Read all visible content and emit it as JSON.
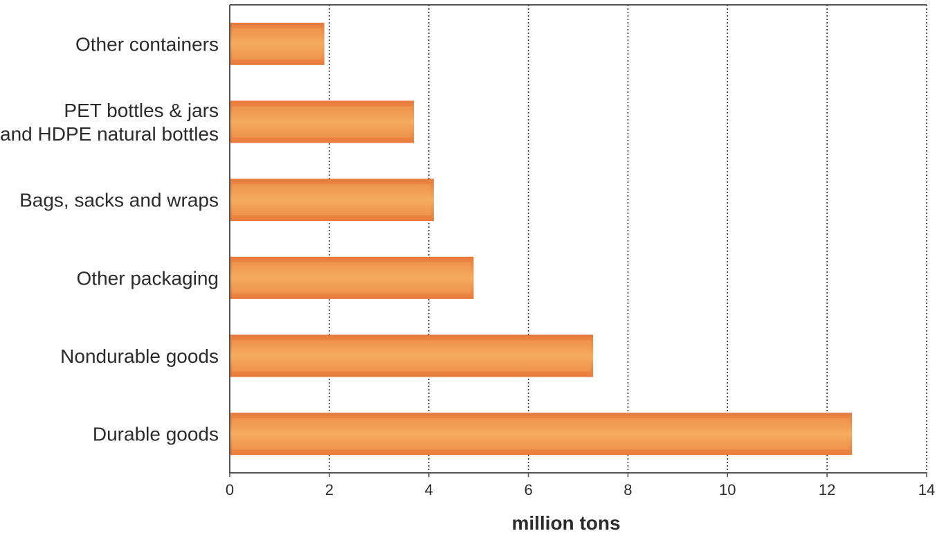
{
  "chart_data": {
    "type": "bar",
    "orientation": "horizontal",
    "categories": [
      [
        "Other containers"
      ],
      [
        "PET bottles & jars",
        "and HDPE natural bottles"
      ],
      [
        "Bags, sacks and wraps"
      ],
      [
        "Other packaging"
      ],
      [
        "Nondurable goods"
      ],
      [
        "Durable goods"
      ]
    ],
    "values": [
      1.9,
      3.7,
      4.1,
      4.9,
      7.3,
      12.5
    ],
    "xlabel": "million tons",
    "ylabel": "",
    "title": "",
    "xlim": [
      0,
      14
    ],
    "xticks": [
      0,
      2,
      4,
      6,
      8,
      10,
      12,
      14
    ],
    "grid": "vertical dotted",
    "colors": {
      "bar_edge": "#e8793a",
      "bar_center": "#f5ab5e",
      "axis": "#555555",
      "grid": "#333333"
    }
  }
}
